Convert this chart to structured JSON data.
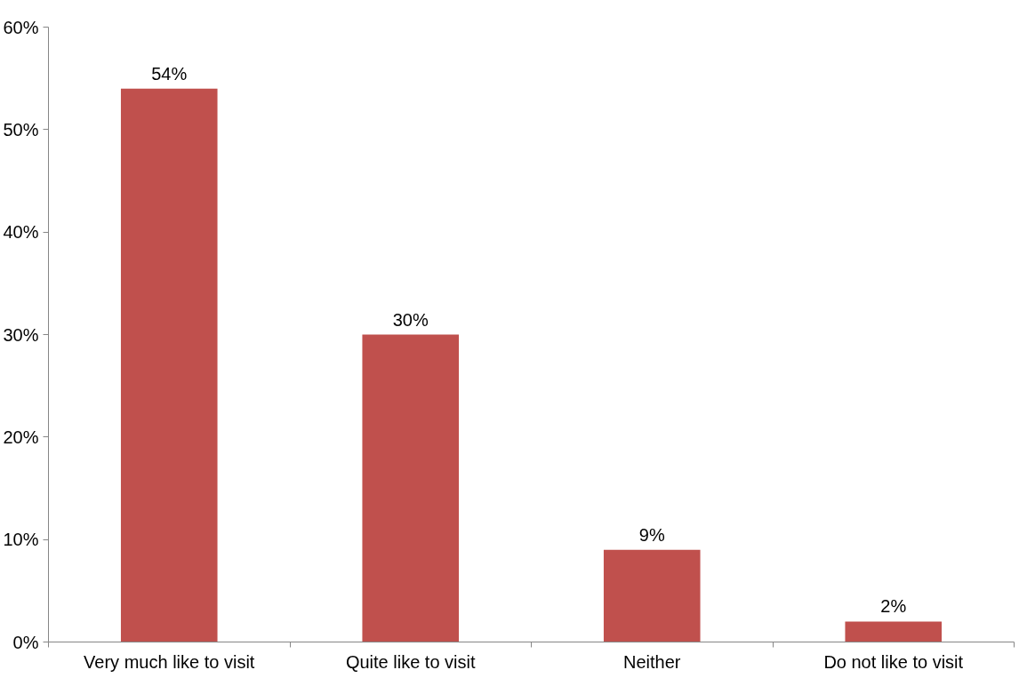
{
  "chart_data": {
    "type": "bar",
    "categories": [
      "Very much like to visit",
      "Quite like to visit",
      "Neither",
      "Do not like to visit"
    ],
    "values": [
      54,
      30,
      9,
      2
    ],
    "color": "#c0504d",
    "value_labels": [
      "54%",
      "30%",
      "9%",
      "2%"
    ],
    "ylim": [
      0,
      60
    ],
    "yticks": [
      {
        "value": 0,
        "label": "0%"
      },
      {
        "value": 10,
        "label": "10%"
      },
      {
        "value": 20,
        "label": "20%"
      },
      {
        "value": 30,
        "label": "30%"
      },
      {
        "value": 40,
        "label": "40%"
      },
      {
        "value": 50,
        "label": "50%"
      },
      {
        "value": 60,
        "label": "60%"
      }
    ],
    "grid": false
  }
}
